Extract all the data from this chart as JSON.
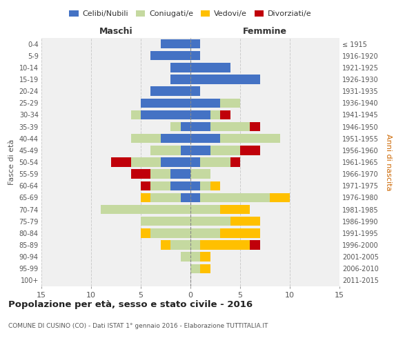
{
  "age_groups": [
    "0-4",
    "5-9",
    "10-14",
    "15-19",
    "20-24",
    "25-29",
    "30-34",
    "35-39",
    "40-44",
    "45-49",
    "50-54",
    "55-59",
    "60-64",
    "65-69",
    "70-74",
    "75-79",
    "80-84",
    "85-89",
    "90-94",
    "95-99",
    "100+"
  ],
  "birth_years": [
    "2011-2015",
    "2006-2010",
    "2001-2005",
    "1996-2000",
    "1991-1995",
    "1986-1990",
    "1981-1985",
    "1976-1980",
    "1971-1975",
    "1966-1970",
    "1961-1965",
    "1956-1960",
    "1951-1955",
    "1946-1950",
    "1941-1945",
    "1936-1940",
    "1931-1935",
    "1926-1930",
    "1921-1925",
    "1916-1920",
    "≤ 1915"
  ],
  "maschi": {
    "celibi": [
      3,
      4,
      2,
      2,
      4,
      5,
      5,
      1,
      3,
      1,
      3,
      2,
      2,
      1,
      0,
      0,
      0,
      0,
      0,
      0,
      0
    ],
    "coniugati": [
      0,
      0,
      0,
      0,
      0,
      0,
      1,
      1,
      3,
      3,
      3,
      2,
      2,
      3,
      9,
      5,
      4,
      2,
      1,
      0,
      0
    ],
    "vedovi": [
      0,
      0,
      0,
      0,
      0,
      0,
      0,
      0,
      0,
      0,
      0,
      0,
      0,
      1,
      0,
      0,
      1,
      1,
      0,
      0,
      0
    ],
    "divorziati": [
      0,
      0,
      0,
      0,
      0,
      0,
      0,
      0,
      0,
      0,
      2,
      2,
      1,
      0,
      0,
      0,
      0,
      0,
      0,
      0,
      0
    ]
  },
  "femmine": {
    "nubili": [
      1,
      1,
      4,
      7,
      1,
      3,
      2,
      2,
      3,
      2,
      1,
      0,
      1,
      1,
      0,
      0,
      0,
      0,
      0,
      0,
      0
    ],
    "coniugate": [
      0,
      0,
      0,
      0,
      0,
      2,
      1,
      4,
      6,
      3,
      3,
      2,
      1,
      7,
      3,
      4,
      3,
      1,
      1,
      1,
      0
    ],
    "vedove": [
      0,
      0,
      0,
      0,
      0,
      0,
      0,
      0,
      0,
      0,
      0,
      0,
      1,
      2,
      3,
      3,
      4,
      5,
      1,
      1,
      0
    ],
    "divorziate": [
      0,
      0,
      0,
      0,
      0,
      0,
      1,
      1,
      0,
      2,
      1,
      0,
      0,
      0,
      0,
      0,
      0,
      1,
      0,
      0,
      0
    ]
  },
  "color_celibi": "#4472c4",
  "color_coniugati": "#c5d9a0",
  "color_vedovi": "#ffc000",
  "color_divorziati": "#c0000a",
  "title": "Popolazione per età, sesso e stato civile - 2016",
  "subtitle": "COMUNE DI CUSINO (CO) - Dati ISTAT 1° gennaio 2016 - Elaborazione TUTTITALIA.IT",
  "xlabel_left": "Maschi",
  "xlabel_right": "Femmine",
  "ylabel_left": "Fasce di età",
  "ylabel_right": "Anni di nascita",
  "xlim": 15,
  "bg_color": "#f0f0f0",
  "grid_color": "#cccccc"
}
